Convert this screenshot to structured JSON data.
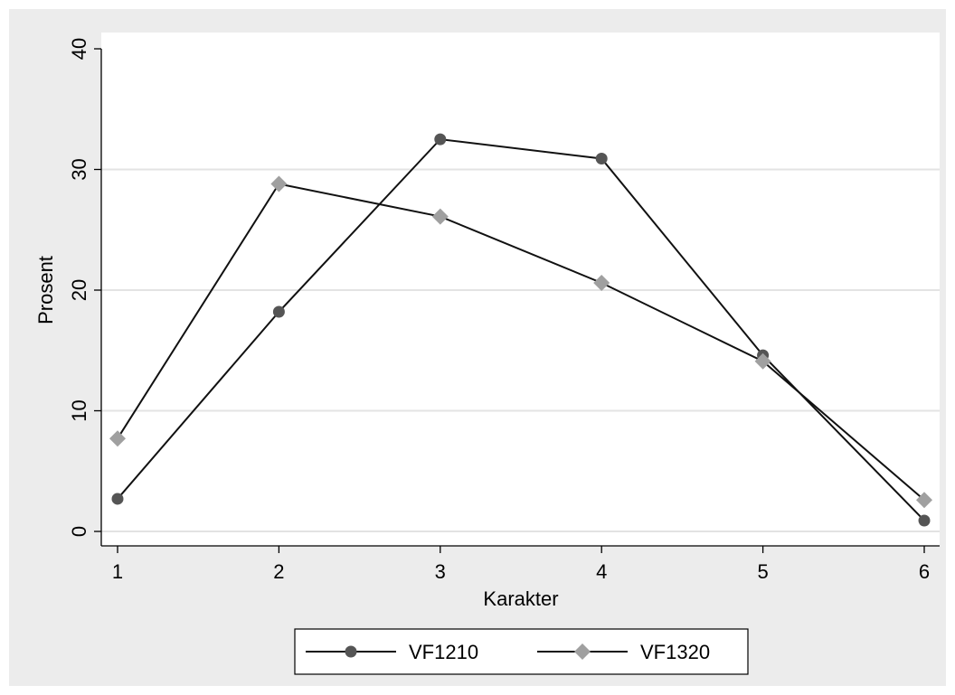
{
  "chart_data": {
    "type": "line",
    "title": "",
    "xlabel": "Karakter",
    "ylabel": "Prosent",
    "x": [
      1,
      2,
      3,
      4,
      5,
      6
    ],
    "xlim": [
      1,
      6
    ],
    "ylim": [
      0,
      40
    ],
    "yticks": [
      0,
      10,
      20,
      30,
      40
    ],
    "xticks": [
      1,
      2,
      3,
      4,
      5,
      6
    ],
    "grid": true,
    "legend_position": "bottom",
    "series": [
      {
        "name": "VF1210",
        "marker": "circle",
        "color": "#555555",
        "values": [
          2.7,
          18.2,
          32.5,
          30.9,
          14.6,
          0.9
        ]
      },
      {
        "name": "VF1320",
        "marker": "diamond",
        "color": "#a0a0a0",
        "values": [
          7.7,
          28.8,
          26.1,
          20.6,
          14.1,
          2.6
        ]
      }
    ]
  },
  "colors": {
    "outer_background": "#ececec",
    "plot_background": "#ffffff",
    "grid": "#e3e3e3",
    "line": "#111111"
  }
}
